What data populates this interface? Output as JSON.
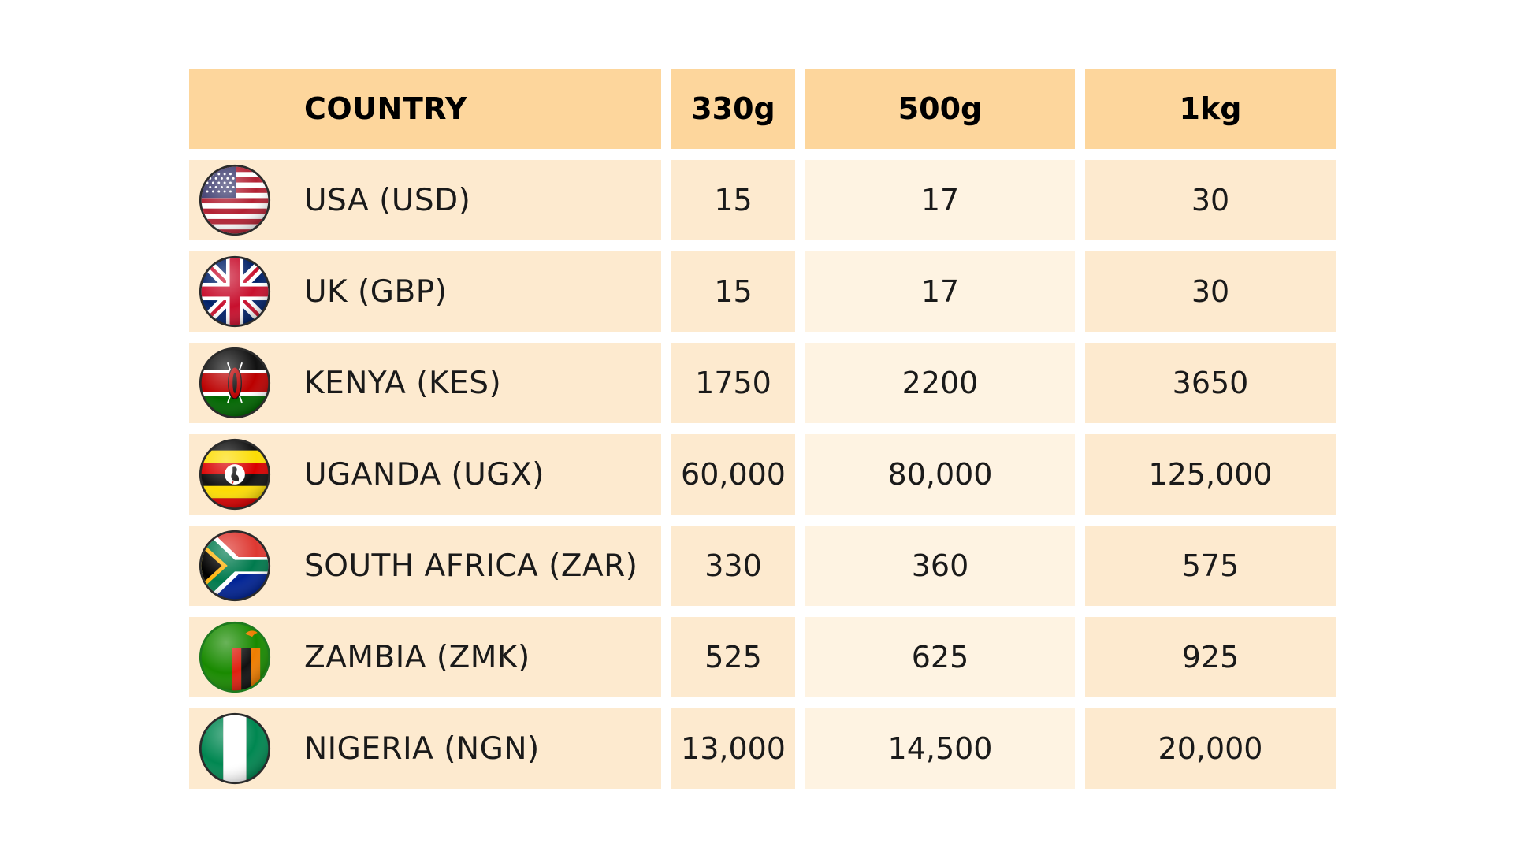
{
  "table": {
    "headers": [
      "COUNTRY",
      "330g",
      "500g",
      "1kg"
    ],
    "rows": [
      {
        "flag": "usa-flag-icon",
        "country": "USA (USD)",
        "values": [
          "15",
          "17",
          "30"
        ]
      },
      {
        "flag": "uk-flag-icon",
        "country": "UK (GBP)",
        "values": [
          "15",
          "17",
          "30"
        ]
      },
      {
        "flag": "kenya-flag-icon",
        "country": "KENYA (KES)",
        "values": [
          "1750",
          "2200",
          "3650"
        ]
      },
      {
        "flag": "uganda-flag-icon",
        "country": "UGANDA (UGX)",
        "values": [
          "60,000",
          "80,000",
          "125,000"
        ]
      },
      {
        "flag": "south-africa-flag-icon",
        "country": "SOUTH AFRICA (ZAR)",
        "values": [
          "330",
          "360",
          "575"
        ]
      },
      {
        "flag": "zambia-flag-icon",
        "country": "ZAMBIA (ZMK)",
        "values": [
          "525",
          "625",
          "925"
        ]
      },
      {
        "flag": "nigeria-flag-icon",
        "country": "NIGERIA (NGN)",
        "values": [
          "13,000",
          "14,500",
          "20,000"
        ]
      }
    ]
  },
  "colors": {
    "header_background": "#fdd69c",
    "row_background": "#fdeacf",
    "row_background_light": "#fef3e2"
  }
}
